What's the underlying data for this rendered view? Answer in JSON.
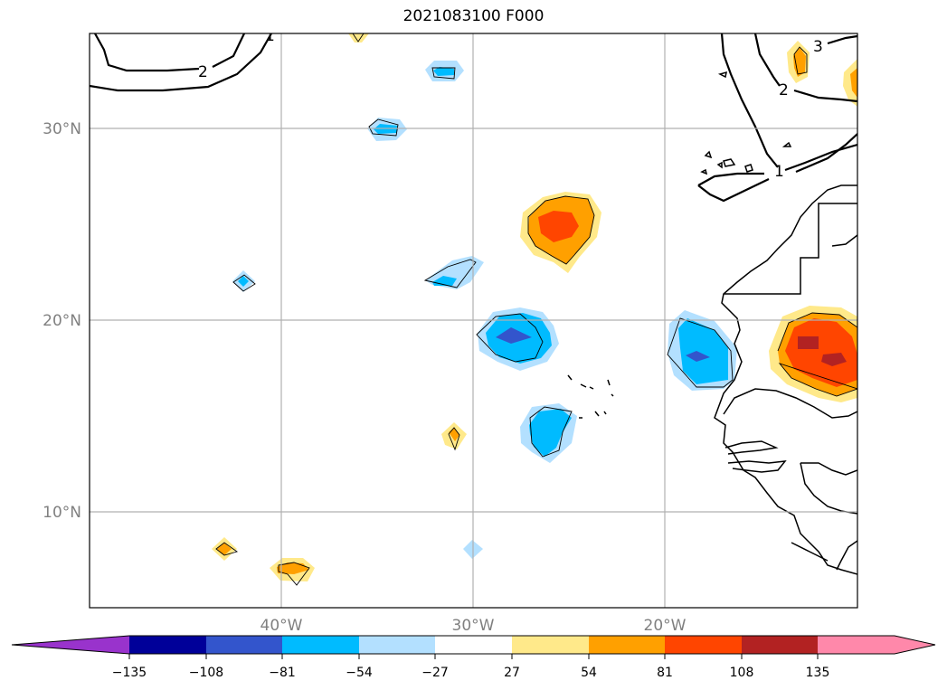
{
  "title": "2021083100 F000",
  "map": {
    "lat_labels": [
      "30°N",
      "20°N",
      "10°N"
    ],
    "lon_labels": [
      "40°W",
      "30°W",
      "20°W"
    ],
    "contour_labels": [
      "1",
      "2",
      "2",
      "3",
      "1"
    ],
    "gridline_color": "#b0b0b0"
  },
  "colorbar": {
    "ticks": [
      "−135",
      "−108",
      "−81",
      "−54",
      "−27",
      "27",
      "54",
      "81",
      "108",
      "135"
    ],
    "colors": {
      "below": "#9933cc",
      "c1": "#000099",
      "c2": "#3355cc",
      "c3": "#00bbff",
      "c4": "#b3e0ff",
      "c5": "#ffffff",
      "c6": "#ffe98a",
      "c7": "#ffa000",
      "c8": "#ff4500",
      "c9": "#b22222",
      "above": "#ff88aa"
    }
  }
}
